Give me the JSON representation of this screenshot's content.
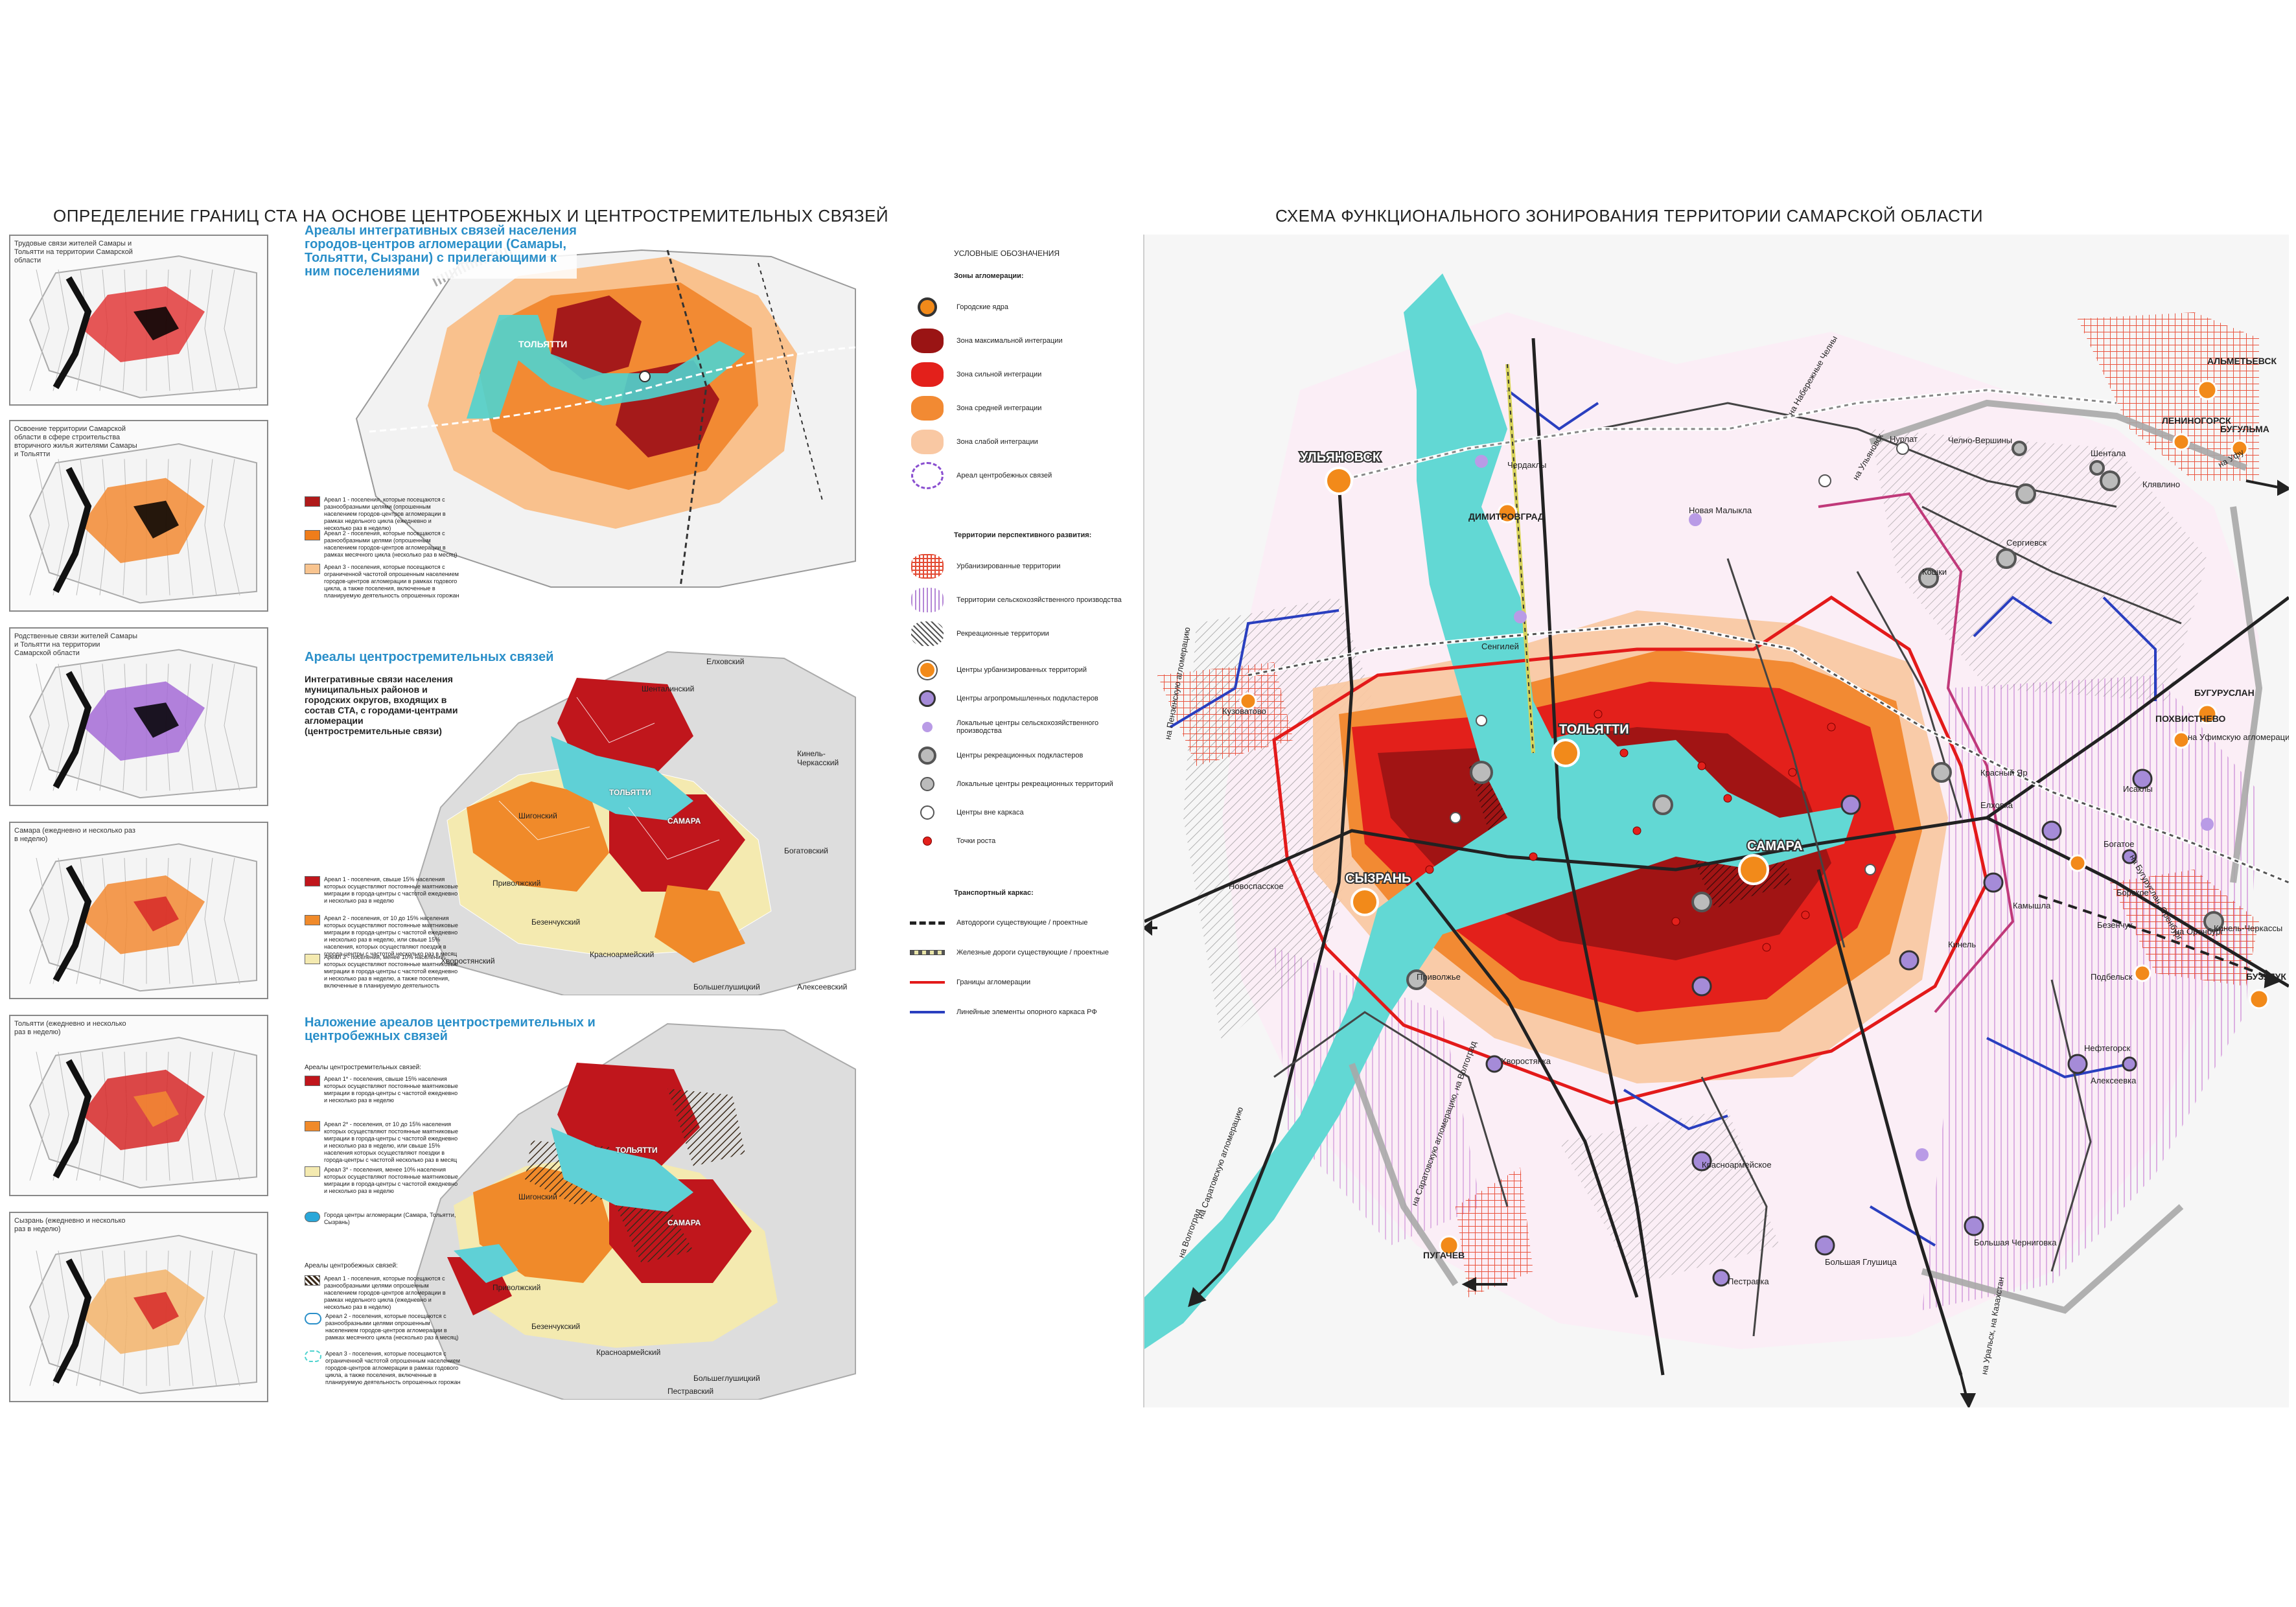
{
  "left_title": "ОПРЕДЕЛЕНИЕ ГРАНИЦ СТА НА ОСНОВЕ ЦЕНТРОБЕЖНЫХ И ЦЕНТРОСТРЕМИТЕЛЬНЫХ СВЯЗЕЙ",
  "right_title": "СХЕМА ФУНКЦИОНАЛЬНОГО ЗОНИРОВАНИЯ ТЕРРИТОРИИ САМАРСКОЙ ОБЛАСТИ",
  "small_panels": [
    {
      "caption": "Трудовые связи жителей Самары и Тольятти на территории Самарской области"
    },
    {
      "caption": "Освоение территории Самарской области в сфере строительства вторичного жилья жителями Самары и Тольятти"
    },
    {
      "caption": "Родственные связи жителей Самары и Тольятти на территории Самарской области"
    },
    {
      "caption": "Самара (ежедневно и несколько раз в неделю)"
    },
    {
      "caption": "Тольятти (ежедневно и несколько раз в неделю)"
    },
    {
      "caption": "Сызрань (ежедневно и несколько раз в неделю)"
    }
  ],
  "block1": {
    "heading": "Ареалы интегративных связей населения городов-центров агломерации (Самары, Тольятти, Сызрани) с прилегающими к ним поселениями",
    "map_label": "ТОЛЬЯТТИ",
    "legend": [
      {
        "text": "Ареал 1 - поселения, которые посещаются с разнообразными целями (опрошенным населением городов-центров агломерации в рамках недельного цикла (ежедневно и несколько раз в неделю)",
        "color": "#b01a1a"
      },
      {
        "text": "Ареал 2 - поселения, которые посещаются с разнообразными целями (опрошенным населением городов-центров агломерации в рамках месячного цикла (несколько раз в месяц)",
        "color": "#f07d1a"
      },
      {
        "text": "Ареал 3 - поселения, которые посещаются с ограниченной частотой опрошенным населением городов-центров агломерации в рамках годового цикла, а также поселения, включенные в планируемую деятельность опрошенных горожан",
        "color": "#f8c48f"
      }
    ]
  },
  "block2": {
    "heading": "Ареалы центростремительных связей",
    "subheading": "Интегративные связи населения муниципальных районов и городских округов, входящих в состав СТА, с городами-центрами агломерации (центростремительные связи)",
    "places": [
      "Елховский",
      "Шенталинский",
      "Кинель-Черкасский",
      "ТОЛЬЯТТИ",
      "Шигонский",
      "САМАРА",
      "Приволжский",
      "Безенчукский",
      "Богатовский",
      "Красноармейский",
      "Хворостянский",
      "Большеглушицкий",
      "Алексеевский"
    ],
    "legend": [
      {
        "text": "Ареал 1 - поселения, свыше 15% населения которых осуществляют постоянные маятниковые миграции в города-центры с частотой ежедневно и несколько раз в неделю",
        "color": "#c0161c"
      },
      {
        "text": "Ареал 2 - поселения, от 10 до 15% населения которых осуществляют постоянные маятниковые миграции в города-центры с частотой ежедневно и несколько раз в неделю, или свыше 15% населения, которых осуществляют поездки в города-центры с частотой несколько раз в месяц",
        "color": "#f08a2a"
      },
      {
        "text": "Ареал 3 - поселения, менее 10% населения которых осуществляют постоянные маятниковые миграции в города-центры с частотой ежедневно и несколько раз в неделю, а также поселения, включенные в планируемую деятельность",
        "color": "#f4eab0"
      }
    ]
  },
  "block3": {
    "heading": "Наложение ареалов центростремительных и центробежных связей",
    "sec1": "Ареалы центростремительных связей:",
    "sec2": "Ареалы центробежных связей:",
    "places": [
      "ТОЛЬЯТТИ",
      "Шигонский",
      "САМАРА",
      "Приволжский",
      "Безенчукский",
      "Красноармейский",
      "Большеглушицкий",
      "Пестравский"
    ],
    "legend_in": [
      {
        "text": "Ареал 1* - поселения, свыше 15% населения которых осуществляют постоянные маятниковые миграции в города-центры с частотой ежедневно и несколько раз в неделю",
        "color": "#c0161c"
      },
      {
        "text": "Ареал 2* - поселения, от 10 до 15% населения которых осуществляют постоянные маятниковые миграции в города-центры с частотой ежедневно и несколько раз в неделю, или свыше 15% населения которых осуществляют поездки в города-центры с частотой несколько раз в месяц",
        "color": "#f08a2a"
      },
      {
        "text": "Ареал 3* - поселения, менее 10% населения которых осуществляют постоянные маятниковые миграции в города-центры с частотой ежедневно и несколько раз в неделю",
        "color": "#f4eab0"
      },
      {
        "text": "Города центры агломерации (Самара, Тольятти, Сызрань)",
        "color": "#2aa7d9"
      }
    ],
    "legend_out": [
      {
        "text": "Ареал 1 - поселения, которые посещаются с разнообразными целями опрошенным населением городов-центров агломерации в рамках недельного цикла (ежедневно и несколько раз в неделю)",
        "color": "#6b5a3a"
      },
      {
        "text": "Ареал 2 - поселения, которые посещаются с разнообразными целями опрошенным населением городов-центров агломерации в рамках месячного цикла (несколько раз в месяц)",
        "color": "#ffffff"
      },
      {
        "text": "Ареал 3 - поселения, которые посещаются с ограниченной частотой опрошенным населением городов-центров агломерации в рамках годового цикла, а также поселения, включенные в планируемую деятельность опрошенных горожан",
        "color": "#ffffff"
      }
    ]
  },
  "right_legend": {
    "title": "УСЛОВНЫЕ ОБОЗНАЧЕНИЯ",
    "sec_zones": "Зоны агломерации:",
    "zones": [
      {
        "text": "Городские ядра"
      },
      {
        "text": "Зона максимальной интеграции",
        "color": "#9a1414"
      },
      {
        "text": "Зона сильной интеграции",
        "color": "#e3201b"
      },
      {
        "text": "Зона средней интеграции",
        "color": "#f28a33"
      },
      {
        "text": "Зона слабой интеграции",
        "color": "#f9c8a3"
      },
      {
        "text": "Ареал центробежных связей"
      }
    ],
    "sec_terr": "Территории перспективного развития:",
    "terr": [
      {
        "text": "Урбанизированные территории",
        "color": "#e34a33"
      },
      {
        "text": "Территории сельскохозяйственного производства",
        "color": "#b486d6"
      },
      {
        "text": "Рекреационные территории",
        "color": "#555555"
      }
    ],
    "centers": [
      {
        "text": "Центры урбанизированных территорий"
      },
      {
        "text": "Центры агропромышленных подкластеров"
      },
      {
        "text": "Локальные центры сельскохозяйственного производства"
      },
      {
        "text": "Центры рекреационных подкластеров"
      },
      {
        "text": "Локальные центры рекреационных территорий"
      },
      {
        "text": "Центры вне каркаса"
      },
      {
        "text": "Точки роста"
      }
    ],
    "sec_transport": "Транспортный каркас:",
    "transport": [
      {
        "text": "Автодороги существующие / проектные"
      },
      {
        "text": "Железные дороги существующие / проектные"
      },
      {
        "text": "Границы агломерации"
      },
      {
        "text": "Линейные элементы опорного каркаса РФ"
      }
    ]
  },
  "main_map": {
    "cities": [
      "УЛЬЯНОВСК",
      "ТОЛЬЯТТИ",
      "САМАРА",
      "СЫЗРАНЬ",
      "ДИМИТРОВГРАД",
      "АЛЬМЕТЬЕВСК",
      "ЛЕНИНОГОРСК",
      "БУГУЛЬМА",
      "БУГУРУСЛАН",
      "БУЗУЛУК",
      "ПУГАЧЕВ",
      "ПОХВИСТНЕВО"
    ],
    "towns": [
      "Чердаклы",
      "Новая Малыкла",
      "Нурлат",
      "Челно-Вершины",
      "Сергиевск",
      "Кошки",
      "Шентала",
      "Клявлино",
      "Камышла",
      "Исаклы",
      "Елховка",
      "Кузоватово",
      "Новоспасское",
      "Сенгилей",
      "Приволжье",
      "Красный Яр",
      "Кинель",
      "Богатое",
      "Борское",
      "Безенчук",
      "Хворостянка",
      "Красноармейское",
      "Пестравка",
      "Большая Глушица",
      "Алексеевка",
      "Большая Черниговка",
      "Нефтегорск",
      "Кинель-Черкассы",
      "Подбельск"
    ],
    "directions": [
      "на Набережные Челны",
      "на Ульяновск",
      "на Уфу",
      "на Уфимскую агломерацию",
      "на Пензенскую агломерацию",
      "на Бугуруслан, Оренбург",
      "на Оренбург",
      "на Саратовскую агломерацию",
      "на Волгоград",
      "на Саратовскую агломерацию, на Волгоград",
      "на Уральск, на Казахстан"
    ]
  }
}
